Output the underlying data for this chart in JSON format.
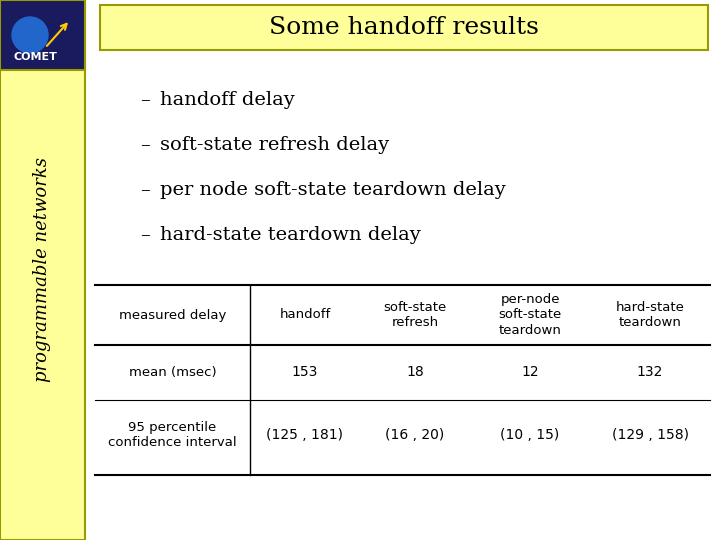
{
  "title": "Some handoff results",
  "title_bg": "#ffff99",
  "slide_bg": "#ffffff",
  "left_bar_bg": "#ffff99",
  "left_bar_text": "programmable networks",
  "bullet_points": [
    "handoff delay",
    "soft-state refresh delay",
    "per node soft-state teardown delay",
    "hard-state teardown delay"
  ],
  "table_headers": [
    "measured delay",
    "handoff",
    "soft-state\nrefresh",
    "per-node\nsoft-state\nteardown",
    "hard-state\nteardown"
  ],
  "table_row1": [
    "mean (msec)",
    "153",
    "18",
    "12",
    "132"
  ],
  "table_row2": [
    "95 percentile\nconfidence interval",
    "(125 , 181)",
    "(16 , 20)",
    "(10 , 15)",
    "(129 , 158)"
  ],
  "comet_logo_bg": "#2255aa",
  "comet_text": "COMET"
}
